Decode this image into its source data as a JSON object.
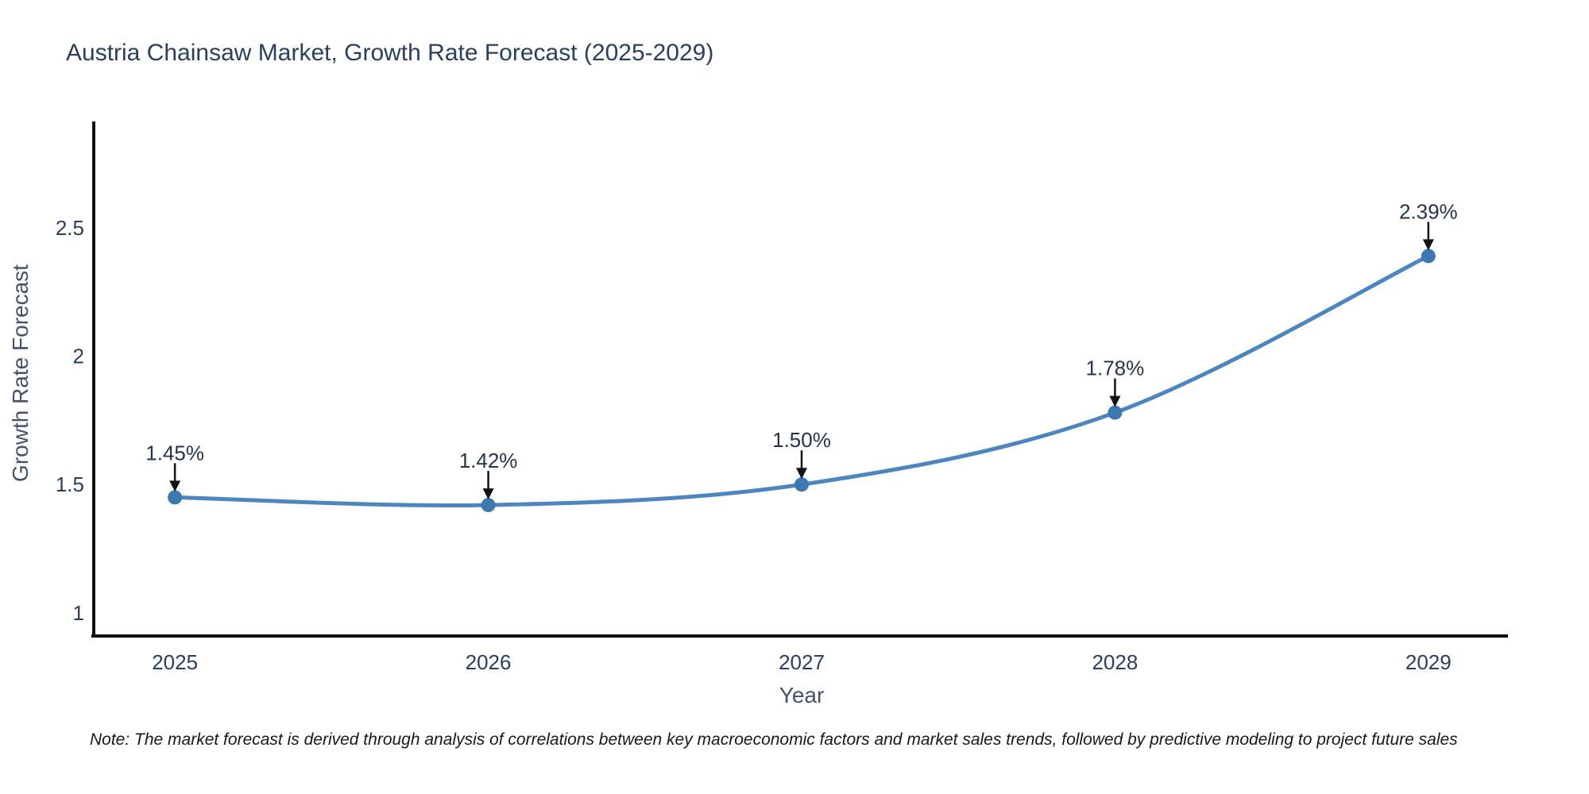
{
  "title": "Austria Chainsaw Market, Growth Rate Forecast (2025-2029)",
  "note": "Note: The market forecast is derived through analysis of correlations between key macroeconomic factors and market sales trends, followed by predictive modeling to project future sales",
  "chart_data": {
    "type": "line",
    "line_shape": "spline",
    "title": "Austria Chainsaw Market, Growth Rate Forecast (2025-2029)",
    "xlabel": "Year",
    "ylabel": "Growth Rate Forecast",
    "x": [
      2025,
      2026,
      2027,
      2028,
      2029
    ],
    "y": [
      1.45,
      1.42,
      1.5,
      1.78,
      2.39
    ],
    "point_labels": [
      "1.45%",
      "1.42%",
      "1.50%",
      "1.78%",
      "2.39%"
    ],
    "x_tick_labels": [
      "2025",
      "2026",
      "2027",
      "2028",
      "2029"
    ],
    "x_tick_values": [
      2025,
      2026,
      2027,
      2028,
      2029
    ],
    "y_tick_labels": [
      "1",
      "1.5",
      "2",
      "2.5"
    ],
    "y_tick_values": [
      1,
      1.5,
      2,
      2.5
    ],
    "xlim": [
      2024.741,
      2029.254
    ],
    "ylim": [
      0.91,
      2.914
    ],
    "grid": false,
    "legend": "none",
    "annotations_have_arrows": true,
    "colors": {
      "line": "#4d86bf",
      "marker": "#3c79b3",
      "axis_line": "#101114",
      "tick_text": "#2a3f5f",
      "annotation_text": "#24344d",
      "arrow": "#141414",
      "title_text": "#2a3f5f",
      "axis_title_text": "#42536b",
      "note_text": "#16181d"
    }
  }
}
